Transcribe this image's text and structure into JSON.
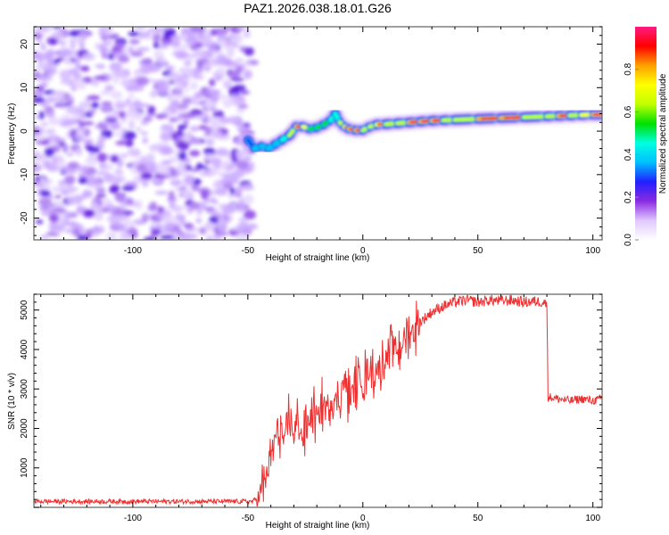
{
  "title": "PAZ1.2026.038.18.01.G26",
  "chart_data": [
    {
      "type": "heatmap",
      "name": "spectrogram",
      "xlabel": "Height of straight line (km)",
      "ylabel": "Frequency (Hz)",
      "xlim": [
        -143,
        104
      ],
      "ylim": [
        -25,
        24
      ],
      "xticks": [
        -100,
        -50,
        0,
        50,
        100
      ],
      "yticks": [
        -20,
        -10,
        0,
        10,
        20
      ],
      "grid": false,
      "noise_region_x": [
        -143,
        -48
      ],
      "signal_ridge": {
        "x": [
          -50,
          -47,
          -44,
          -41,
          -38,
          -35,
          -32,
          -29,
          -26,
          -23,
          -20,
          -17,
          -14,
          -12,
          -10,
          -8,
          -6,
          -3,
          0,
          3,
          6,
          10,
          15,
          20,
          25,
          30,
          35,
          40,
          50,
          60,
          70,
          80,
          85,
          90,
          95,
          100,
          104
        ],
        "y": [
          -2,
          -4,
          -3.5,
          -4,
          -3,
          -2,
          -1,
          1,
          1,
          0.5,
          0.8,
          1.5,
          2.5,
          4,
          2,
          1,
          0.5,
          0.2,
          0.2,
          1,
          1.5,
          1.6,
          1.8,
          2,
          2.2,
          2.4,
          2.5,
          2.6,
          2.8,
          3,
          3.2,
          3.4,
          3.5,
          3.6,
          3.7,
          3.8,
          3.8
        ],
        "amplitude": [
          0.3,
          0.4,
          0.35,
          0.45,
          0.4,
          0.5,
          0.6,
          0.9,
          0.95,
          0.7,
          0.6,
          0.65,
          0.55,
          0.5,
          0.6,
          0.8,
          0.95,
          0.95,
          0.9,
          0.6,
          0.85,
          0.9,
          0.7,
          0.9,
          0.95,
          0.95,
          0.9,
          0.7,
          0.9,
          0.95,
          0.9,
          0.6,
          0.95,
          0.9,
          0.7,
          0.95,
          0.95
        ]
      },
      "colorbar": {
        "label": "Normalized spectral amplitude",
        "ticks": [
          0.0,
          0.2,
          0.4,
          0.6,
          0.8
        ],
        "range": [
          0,
          1
        ],
        "colors": [
          "#ffffff",
          "#e0c8ff",
          "#8a2be2",
          "#2020ff",
          "#00c0ff",
          "#00ffe0",
          "#00e000",
          "#c0ff00",
          "#ffff00",
          "#ffa000",
          "#ff0000",
          "#ff1a80"
        ]
      }
    },
    {
      "type": "line",
      "name": "snr",
      "xlabel": "Height of straight line (km)",
      "ylabel": "SNR (10 * v/v)",
      "xlim": [
        -143,
        104
      ],
      "ylim": [
        0,
        5400
      ],
      "xticks": [
        -100,
        -50,
        0,
        50,
        100
      ],
      "yticks": [
        1000,
        2000,
        3000,
        4000,
        5000
      ],
      "grid": false,
      "color": "#f03030",
      "series": [
        {
          "name": "SNR",
          "x": [
            -143,
            -120,
            -100,
            -80,
            -60,
            -48,
            -45,
            -42,
            -40,
            -38,
            -36,
            -34,
            -32,
            -30,
            -28,
            -26,
            -24,
            -22,
            -20,
            -18,
            -16,
            -14,
            -12,
            -10,
            -8,
            -6,
            -4,
            -2,
            0,
            2,
            4,
            6,
            8,
            10,
            12,
            14,
            16,
            18,
            20,
            22,
            25,
            30,
            35,
            40,
            45,
            50,
            55,
            60,
            65,
            70,
            75,
            79,
            80,
            80.5,
            85,
            90,
            95,
            100,
            104
          ],
          "y": [
            150,
            150,
            150,
            150,
            150,
            150,
            250,
            800,
            1200,
            1800,
            2000,
            1600,
            2400,
            1800,
            2200,
            1700,
            2100,
            2400,
            2200,
            2600,
            2500,
            2800,
            2700,
            2900,
            3200,
            2800,
            3000,
            3300,
            3200,
            3400,
            3500,
            3500,
            3600,
            3800,
            3900,
            4100,
            4000,
            4300,
            4400,
            4500,
            4700,
            4950,
            5100,
            5200,
            5250,
            5200,
            5250,
            5230,
            5250,
            5200,
            5220,
            5200,
            5100,
            2800,
            2750,
            2700,
            2750,
            2700,
            2750
          ]
        }
      ]
    }
  ]
}
